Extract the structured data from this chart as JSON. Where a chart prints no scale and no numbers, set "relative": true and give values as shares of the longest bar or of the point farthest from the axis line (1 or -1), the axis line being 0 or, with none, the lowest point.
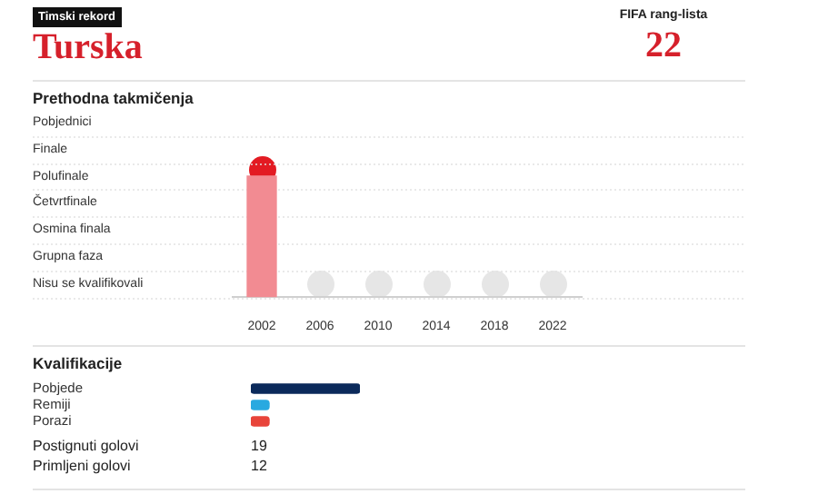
{
  "chart_data": [
    {
      "type": "other",
      "title": "Turska",
      "annotations": [
        "Timski rekord",
        "FIFA rang-lista",
        "22"
      ]
    },
    {
      "type": "bar",
      "title": "Prethodna takmičenja",
      "categories": [
        "2002",
        "2006",
        "2010",
        "2014",
        "2018",
        "2022"
      ],
      "values": [
        1,
        null,
        null,
        null,
        null,
        null
      ],
      "color": "#f28b92",
      "relative": true,
      "annotations": [
        "Pobjednici",
        "Finale",
        "Polufinale",
        "Četvrtfinale",
        "Osmina finala",
        "Grupna faza",
        "Nisu se kvalifikovali"
      ],
      "grid": true
    },
    {
      "type": "bar",
      "orientation": "horizontal",
      "title": "Kvalifikacije",
      "categories": [
        "Pobjede",
        "Remiji",
        "Porazi"
      ],
      "values": [
        1,
        0.167,
        0.167
      ],
      "colors": [
        "#0b2a5b",
        "#29a9e0",
        "#e8443a"
      ],
      "relative": true,
      "tick_labels": "y"
    },
    {
      "type": "other",
      "annotations": [
        "Postignuti golovi",
        "19",
        "Primljeni golovi",
        "12"
      ]
    }
  ]
}
